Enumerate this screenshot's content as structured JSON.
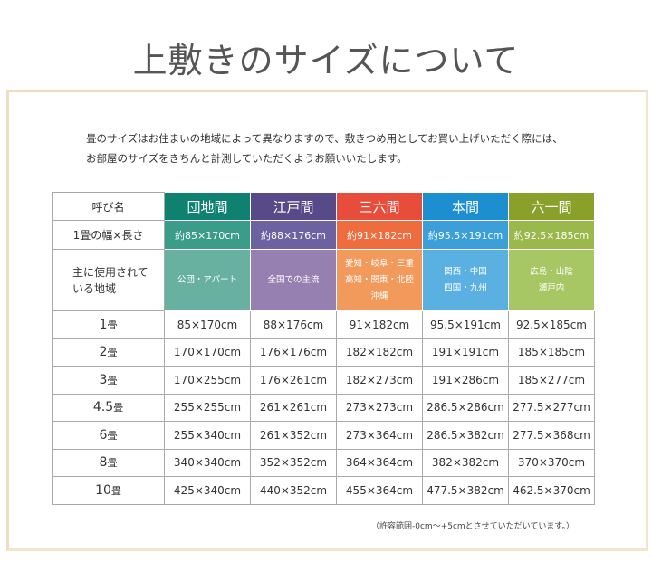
{
  "title": "上敷きのサイズについて",
  "intro": [
    "畳のサイズはお住まいの地域によって異なりますので、敷きつめ用としてお買い上げいただく際には、",
    "お部屋のサイズをきちんと計測していただくようお願いいたします。"
  ],
  "table": {
    "row_labels": {
      "name": "呼び名",
      "size": "1畳の幅×長さ",
      "region": "主に使用されている地域"
    },
    "columns": [
      {
        "name": "団地間",
        "size": "約85×170cm",
        "region": "公団・アパート",
        "colors": [
          "#0e8171",
          "#3b9c89",
          "#68b0a0"
        ]
      },
      {
        "name": "江戸間",
        "size": "約88×176cm",
        "region": "全国での主流",
        "colors": [
          "#574a88",
          "#6d62a1",
          "#9680b1"
        ]
      },
      {
        "name": "三六間",
        "size": "約91×182cm",
        "region": "愛知・岐阜・三重 高知・関東・北陸 沖縄",
        "colors": [
          "#e84d3c",
          "#ef6c3f",
          "#f29a5c"
        ]
      },
      {
        "name": "本間",
        "size": "約95.5×191cm",
        "region": "関西・中国 四国・九州",
        "colors": [
          "#1d8ed0",
          "#3c9fd9",
          "#5bb0e2"
        ]
      },
      {
        "name": "六一間",
        "size": "約92.5×185cm",
        "region": "広島・山陰 瀬戸内",
        "colors": [
          "#89a12a",
          "#9ab84c",
          "#a6c764"
        ]
      }
    ],
    "rows": [
      {
        "num": "1",
        "unit": "畳",
        "values": [
          "85×170cm",
          "88×176cm",
          "91×182cm",
          "95.5×191cm",
          "92.5×185cm"
        ]
      },
      {
        "num": "2",
        "unit": "畳",
        "values": [
          "170×170cm",
          "176×176cm",
          "182×182cm",
          "191×191cm",
          "185×185cm"
        ]
      },
      {
        "num": "3",
        "unit": "畳",
        "values": [
          "170×255cm",
          "176×261cm",
          "182×273cm",
          "191×286cm",
          "185×277cm"
        ]
      },
      {
        "num": "4.5",
        "unit": "畳",
        "values": [
          "255×255cm",
          "261×261cm",
          "273×273cm",
          "286.5×286cm",
          "277.5×277cm"
        ]
      },
      {
        "num": "6",
        "unit": "畳",
        "values": [
          "255×340cm",
          "261×352cm",
          "273×364cm",
          "286.5×382cm",
          "277.5×368cm"
        ]
      },
      {
        "num": "8",
        "unit": "畳",
        "values": [
          "340×340cm",
          "352×352cm",
          "364×364cm",
          "382×382cm",
          "370×370cm"
        ]
      },
      {
        "num": "10",
        "unit": "畳",
        "values": [
          "425×340cm",
          "440×352cm",
          "455×364cm",
          "477.5×382cm",
          "462.5×370cm"
        ]
      }
    ]
  },
  "note": "（許容範囲-0cm～+5cmとさせていただいています。）"
}
